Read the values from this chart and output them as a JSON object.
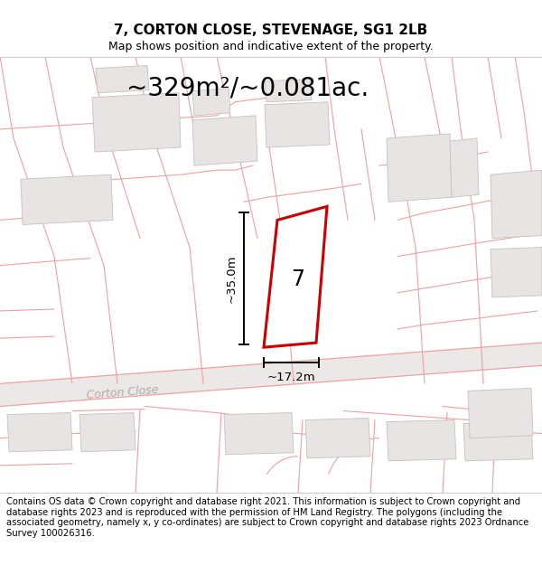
{
  "title": "7, CORTON CLOSE, STEVENAGE, SG1 2LB",
  "subtitle": "Map shows position and indicative extent of the property.",
  "area_text": "~329m²/~0.081ac.",
  "number_label": "7",
  "dim_vertical": "~35.0m",
  "dim_horizontal": "~17.2m",
  "street_label": "Corton Close",
  "footer_text": "Contains OS data © Crown copyright and database right 2021. This information is subject to Crown copyright and database rights 2023 and is reproduced with the permission of HM Land Registry. The polygons (including the associated geometry, namely x, y co-ordinates) are subject to Crown copyright and database rights 2023 Ordnance Survey 100026316.",
  "map_bg": "#faf8f8",
  "building_fill": "#e8e4e4",
  "building_edge": "#c8c0c0",
  "pink": "#f0a0a0",
  "red": "#cc0000",
  "road_fill": "#f0ecec",
  "title_fontsize": 11,
  "subtitle_fontsize": 9,
  "area_fontsize": 20,
  "footer_fontsize": 7.2,
  "street_fontsize": 9
}
